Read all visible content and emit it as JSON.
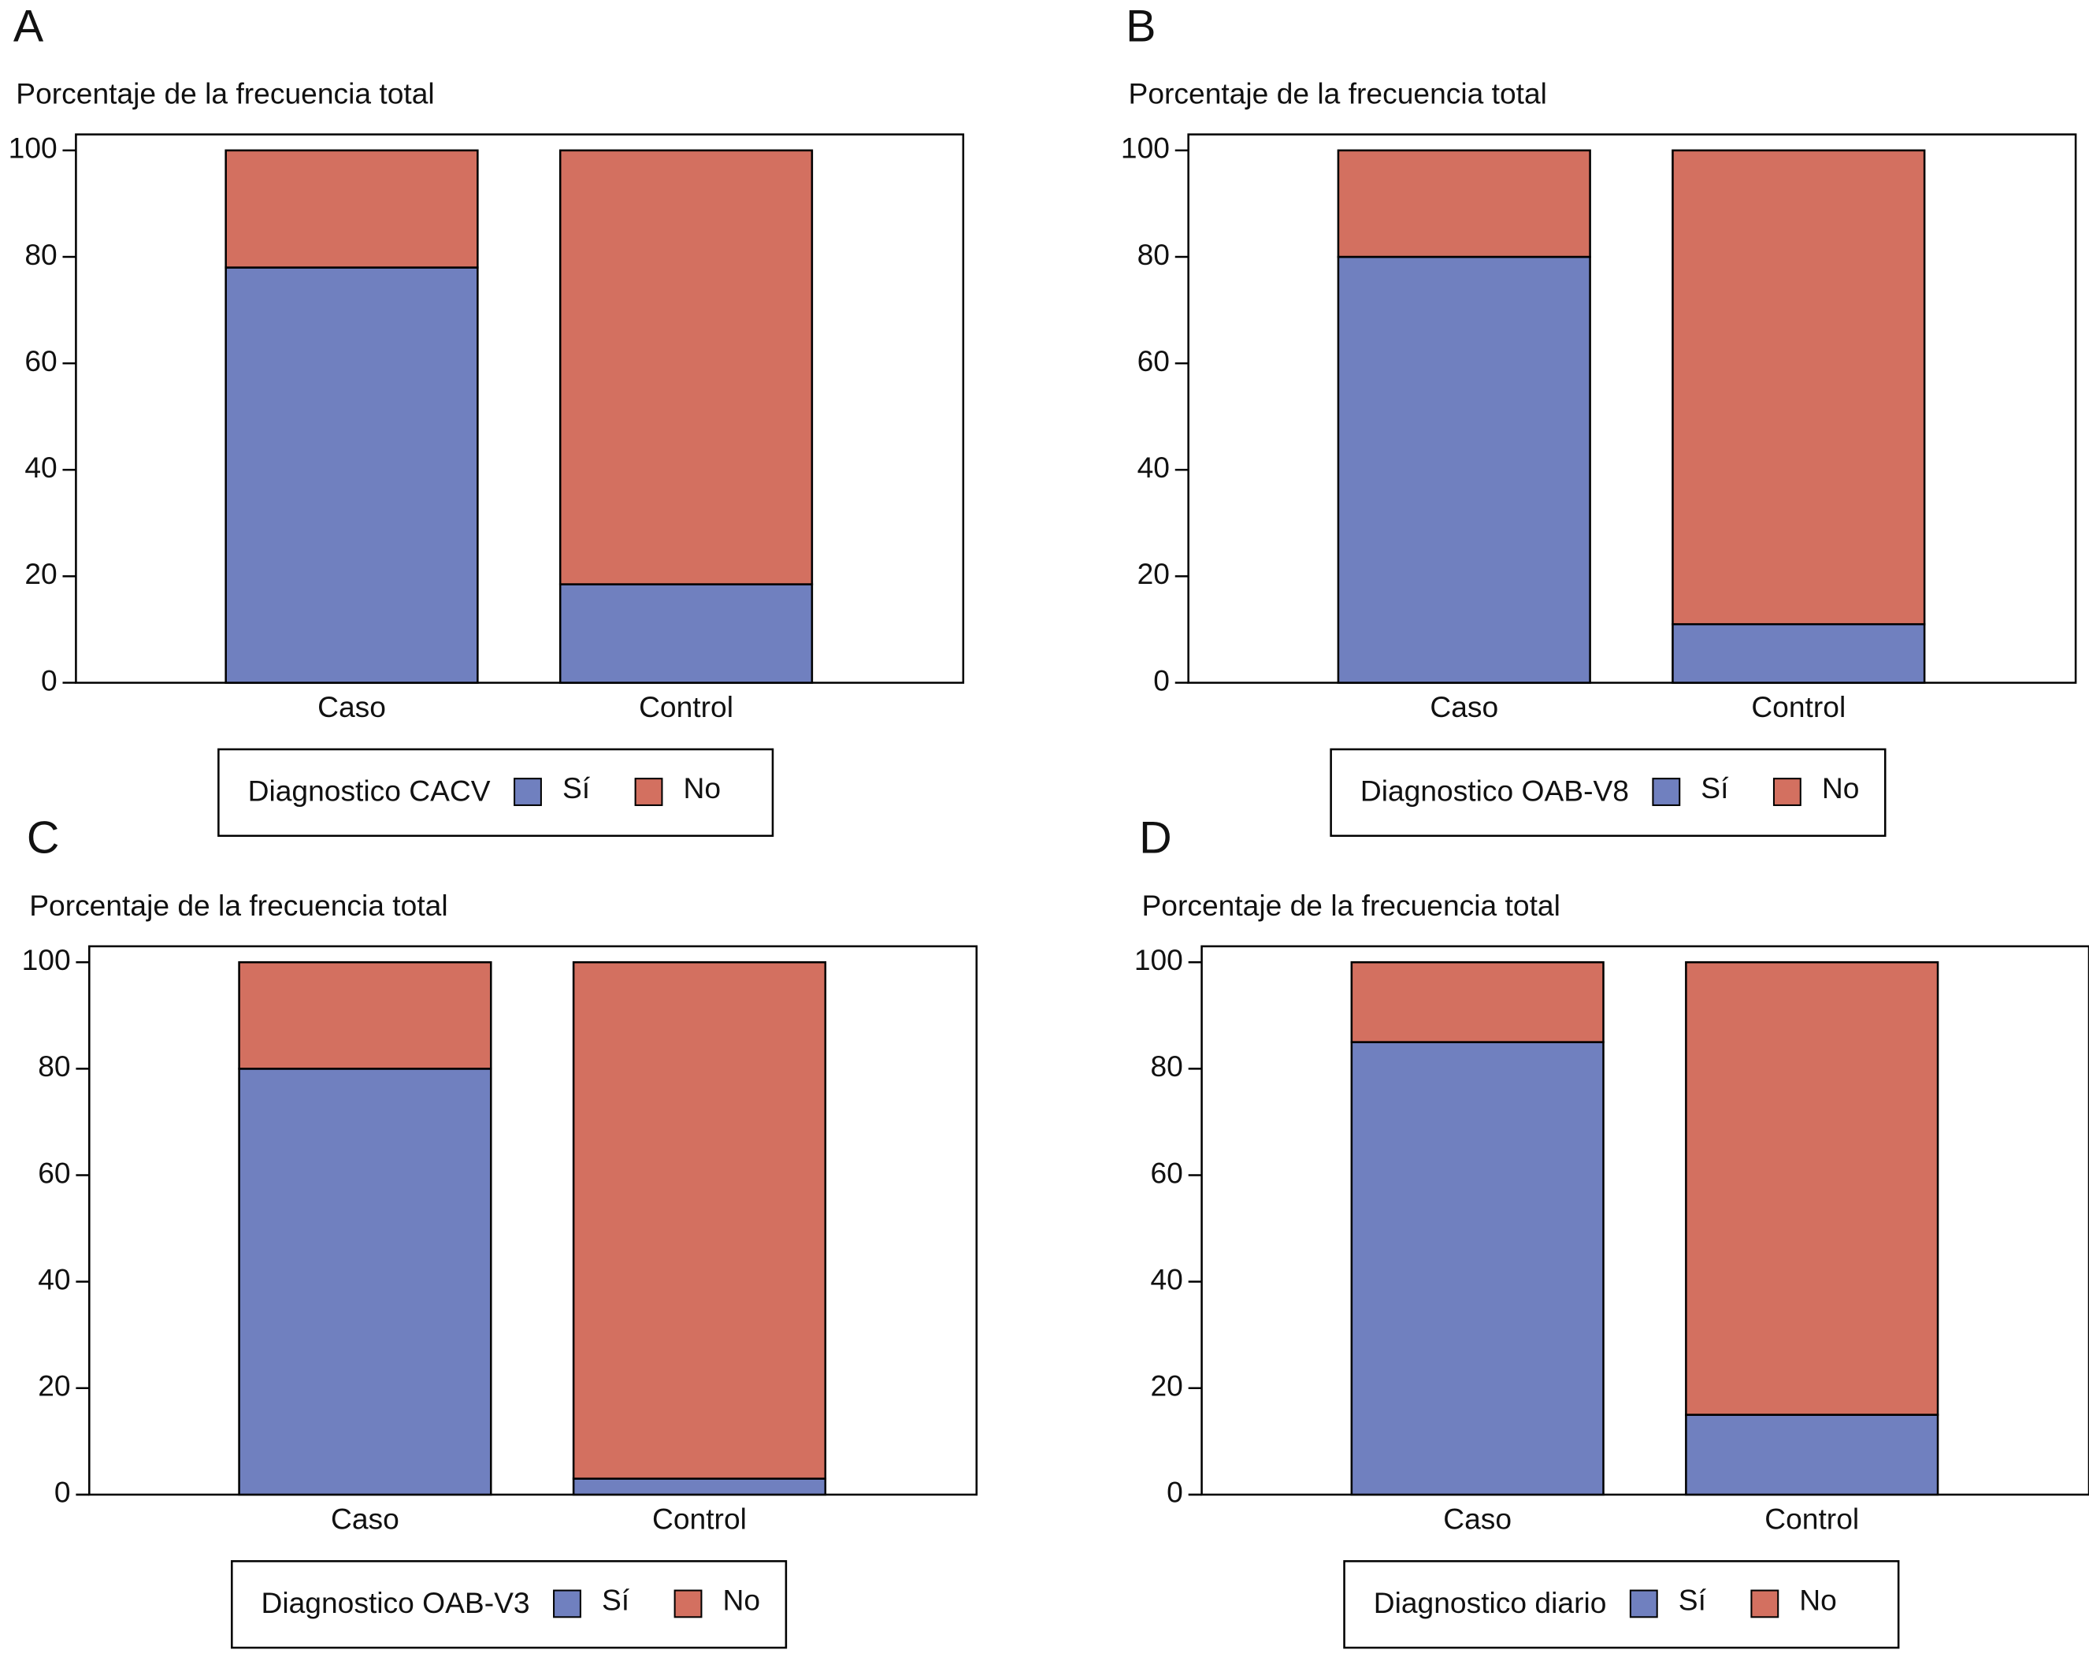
{
  "chart_data": [
    {
      "type": "stacked-bar",
      "panel": "A",
      "title": "Porcentaje de la frecuencia total",
      "categories": [
        "Caso",
        "Control"
      ],
      "legend_title": "Diagnostico CACV",
      "series": [
        {
          "name": "Sí",
          "color": "#7080bf",
          "values": [
            78,
            18.5
          ]
        },
        {
          "name": "No",
          "color": "#d37060",
          "values": [
            22,
            81.5
          ]
        }
      ],
      "ylim": [
        0,
        100
      ],
      "yticks": [
        0,
        20,
        40,
        60,
        80,
        100
      ]
    },
    {
      "type": "stacked-bar",
      "panel": "B",
      "title": "Porcentaje de la frecuencia total",
      "categories": [
        "Caso",
        "Control"
      ],
      "legend_title": "Diagnostico OAB-V8",
      "series": [
        {
          "name": "Sí",
          "color": "#7080bf",
          "values": [
            80,
            11
          ]
        },
        {
          "name": "No",
          "color": "#d37060",
          "values": [
            20,
            89
          ]
        }
      ],
      "ylim": [
        0,
        100
      ],
      "yticks": [
        0,
        20,
        40,
        60,
        80,
        100
      ]
    },
    {
      "type": "stacked-bar",
      "panel": "C",
      "title": "Porcentaje de la frecuencia total",
      "categories": [
        "Caso",
        "Control"
      ],
      "legend_title": "Diagnostico OAB-V3",
      "series": [
        {
          "name": "Sí",
          "color": "#7080bf",
          "values": [
            80,
            3
          ]
        },
        {
          "name": "No",
          "color": "#d37060",
          "values": [
            20,
            97
          ]
        }
      ],
      "ylim": [
        0,
        100
      ],
      "yticks": [
        0,
        20,
        40,
        60,
        80,
        100
      ]
    },
    {
      "type": "stacked-bar",
      "panel": "D",
      "title": "Porcentaje de la frecuencia total",
      "categories": [
        "Caso",
        "Control"
      ],
      "legend_title": "Diagnostico diario",
      "series": [
        {
          "name": "Sí",
          "color": "#7080bf",
          "values": [
            85,
            15
          ]
        },
        {
          "name": "No",
          "color": "#d37060",
          "values": [
            15,
            85
          ]
        }
      ],
      "ylim": [
        0,
        100
      ],
      "yticks": [
        0,
        20,
        40,
        60,
        80,
        100
      ]
    }
  ]
}
